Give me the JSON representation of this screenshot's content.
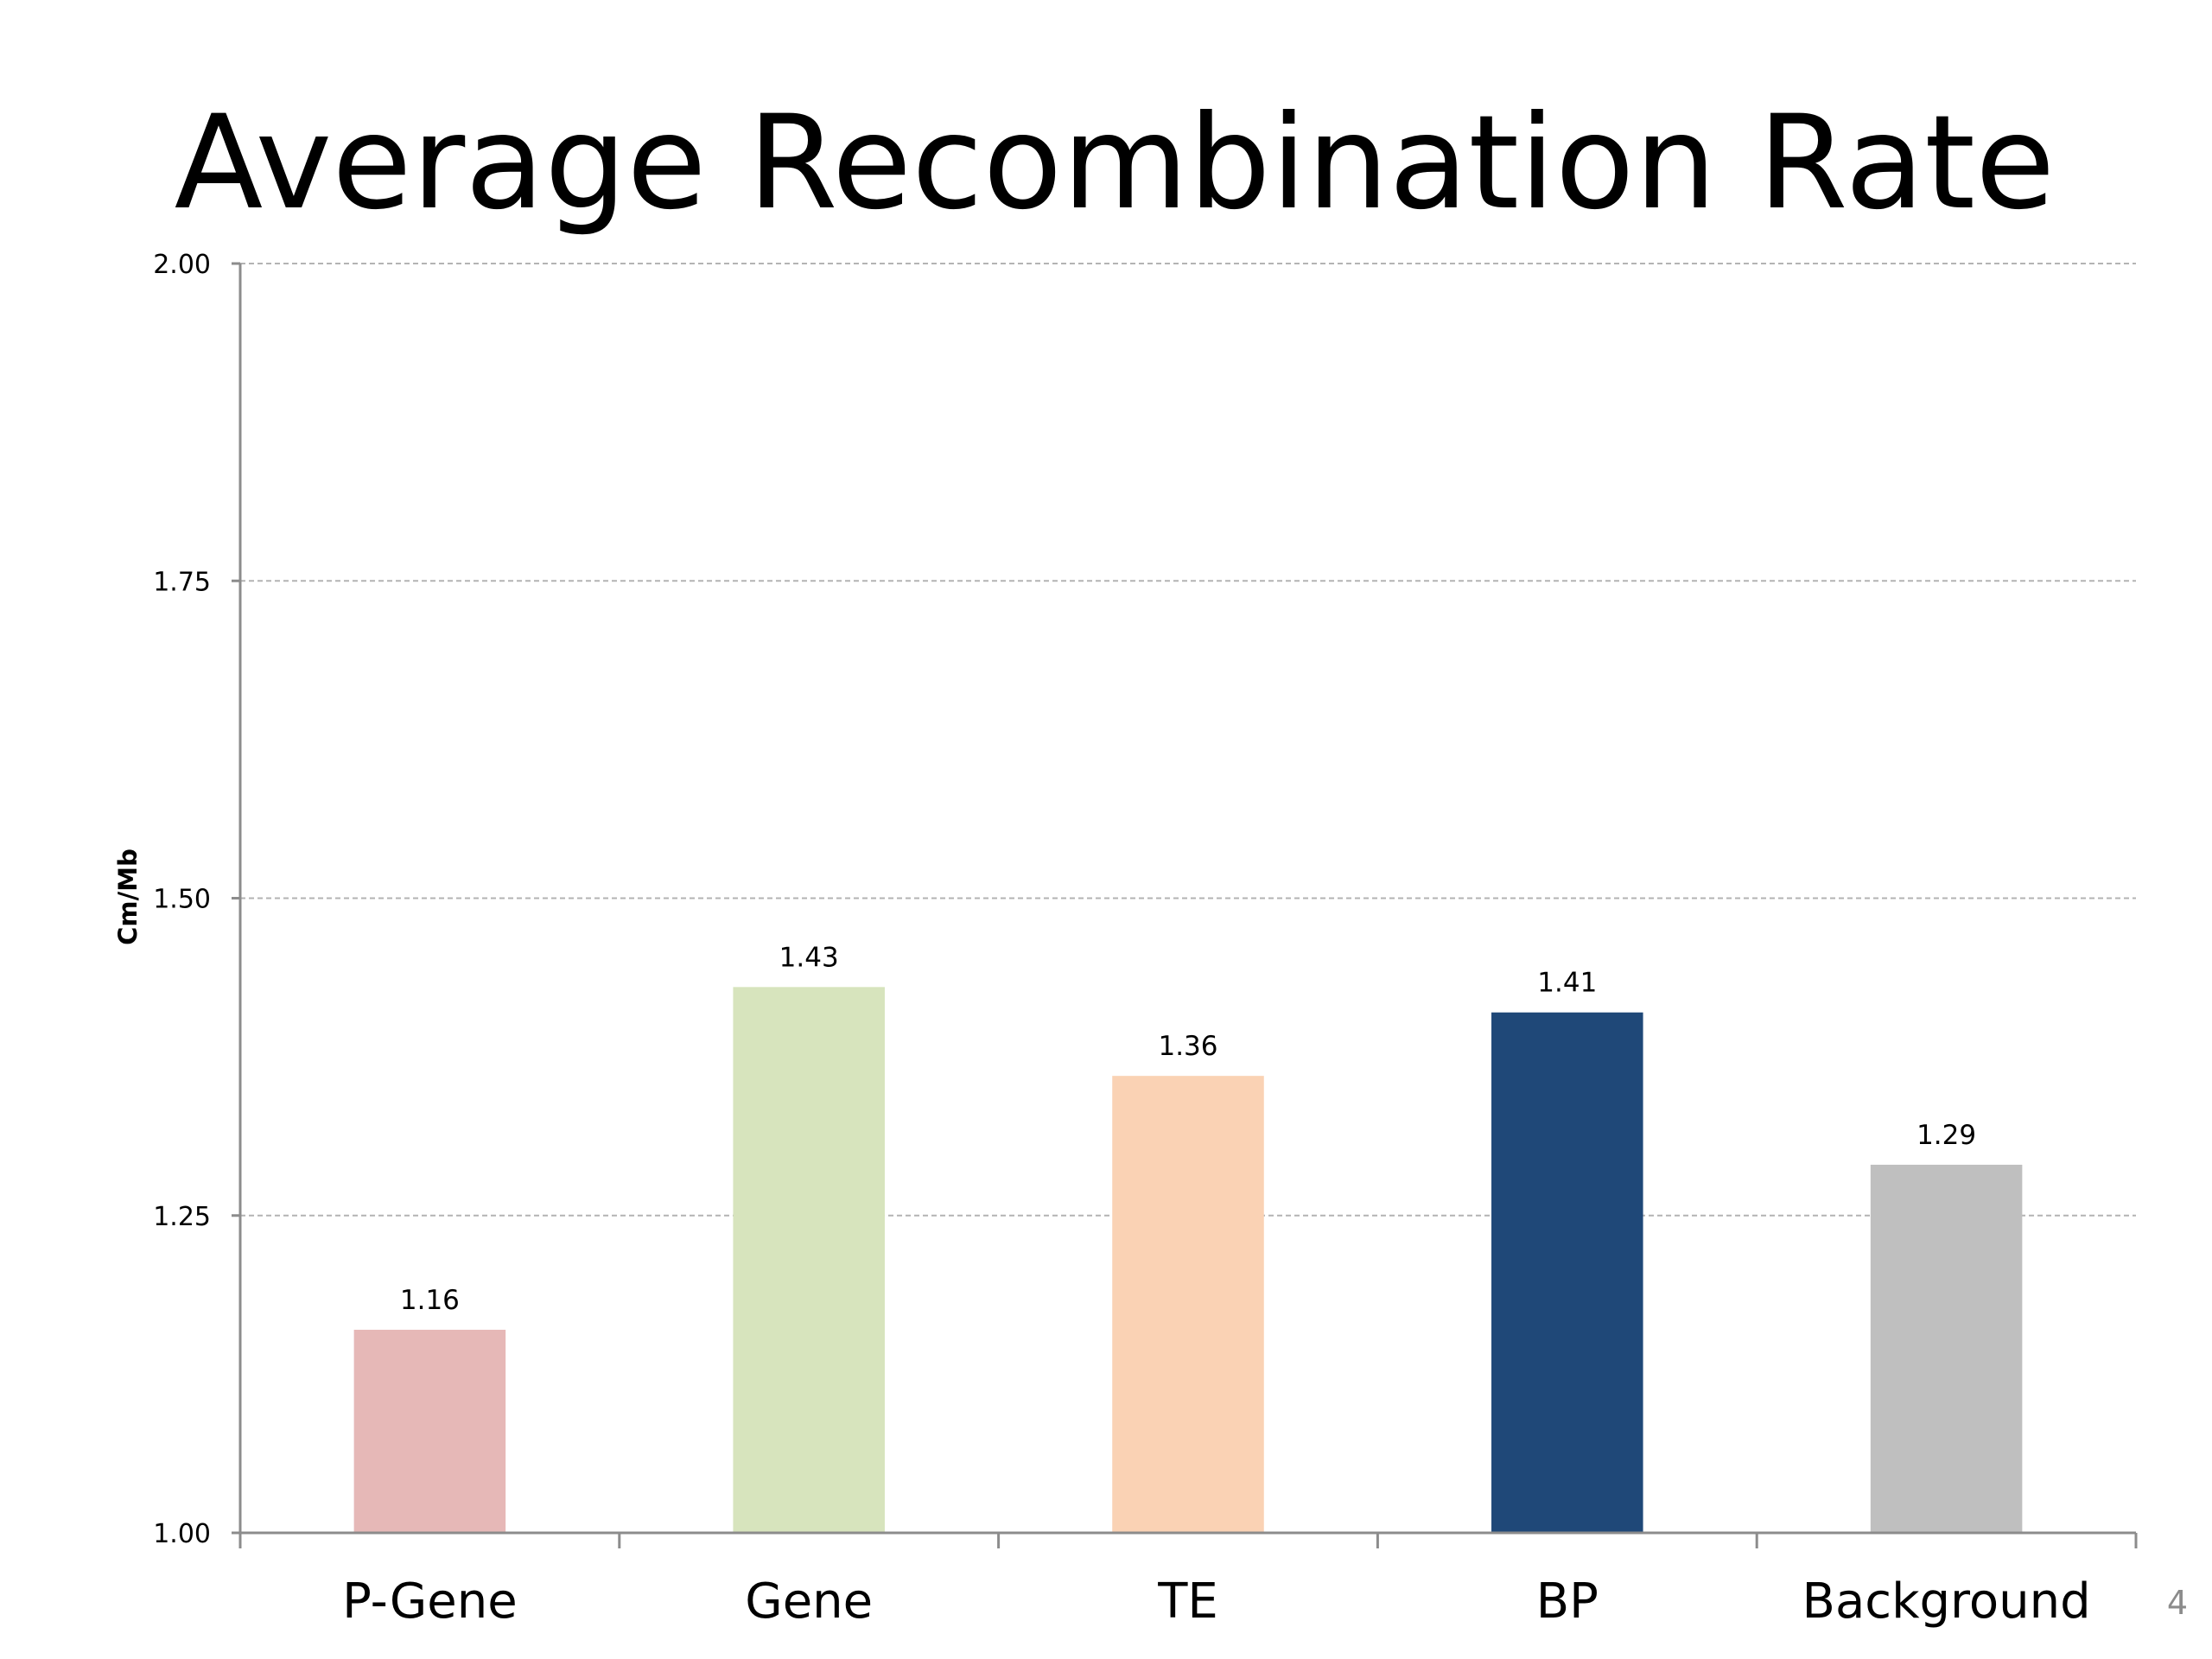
{
  "slide": {
    "title": "Average Recombination Rate",
    "page_number": "4"
  },
  "chart_data": {
    "type": "bar",
    "title": "",
    "xlabel": "",
    "ylabel": "Cm/Mb",
    "ylim": [
      1.0,
      2.0
    ],
    "yticks": [
      "1.00",
      "1.25",
      "1.50",
      "1.75",
      "2.00"
    ],
    "grid": true,
    "legend": "none",
    "categories": [
      "P-Gene",
      "Gene",
      "TE",
      "BP",
      "Background"
    ],
    "values": [
      1.16,
      1.43,
      1.36,
      1.41,
      1.29
    ],
    "value_labels": [
      "1.16",
      "1.43",
      "1.36",
      "1.41",
      "1.29"
    ],
    "colors": [
      "#e6b8b7",
      "#d7e4bd",
      "#fad2b4",
      "#1f4878",
      "#bfbfbf"
    ]
  }
}
